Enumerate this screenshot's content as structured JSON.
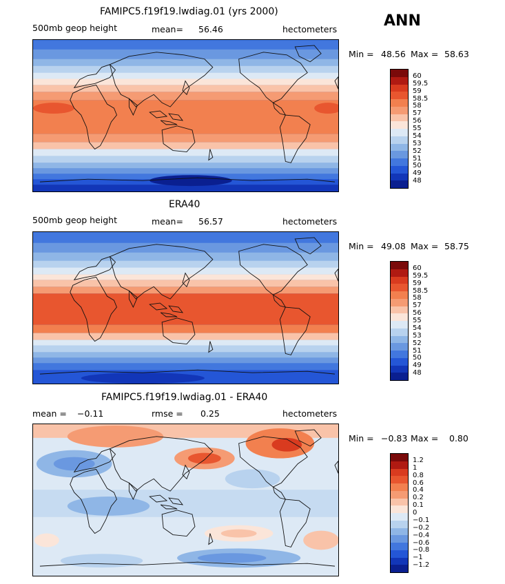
{
  "season": "ANN",
  "panels": [
    {
      "title": "FAMIPC5.f19f19.lwdiag.01 (yrs 2000)",
      "left_label": "500mb geop height",
      "stat_label": "mean=",
      "stat_value": "56.46",
      "units": "hectometers",
      "min_label": "Min =",
      "min_value": "48.56",
      "max_label": "Max =",
      "max_value": "58.63",
      "colorbar_labels": [
        "60",
        "59.5",
        "59",
        "58.5",
        "58",
        "57",
        "56",
        "55",
        "54",
        "53",
        "52",
        "51",
        "50",
        "49",
        "48"
      ]
    },
    {
      "title": "ERA40",
      "left_label": "500mb geop height",
      "stat_label": "mean=",
      "stat_value": "56.57",
      "units": "hectometers",
      "min_label": "Min =",
      "min_value": "49.08",
      "max_label": "Max =",
      "max_value": "58.75",
      "colorbar_labels": [
        "60",
        "59.5",
        "59",
        "58.5",
        "58",
        "57",
        "56",
        "55",
        "54",
        "53",
        "52",
        "51",
        "50",
        "49",
        "48"
      ]
    },
    {
      "title": "FAMIPC5.f19f19.lwdiag.01 - ERA40",
      "left_label": "mean =",
      "left_value": "−0.11",
      "stat_label": "rmse =",
      "stat_value": "0.25",
      "units": "hectometers",
      "min_label": "Min =",
      "min_value": "−0.83",
      "max_label": "Max =",
      "max_value": "0.80",
      "colorbar_labels": [
        "1.2",
        "1",
        "0.8",
        "0.6",
        "0.4",
        "0.2",
        "0.1",
        "0",
        "−0.1",
        "−0.2",
        "−0.4",
        "−0.6",
        "−0.8",
        "−1",
        "−1.2"
      ]
    }
  ],
  "colors": {
    "scale": [
      "#7a0a0a",
      "#b01a12",
      "#d93b1f",
      "#e8562f",
      "#f2804f",
      "#f59b73",
      "#f9c3a9",
      "#fbe5d9",
      "#dde9f5",
      "#b8d2ee",
      "#8fb6e6",
      "#6a98e0",
      "#4277de",
      "#2456d6",
      "#1236b8",
      "#0a1f90"
    ]
  }
}
